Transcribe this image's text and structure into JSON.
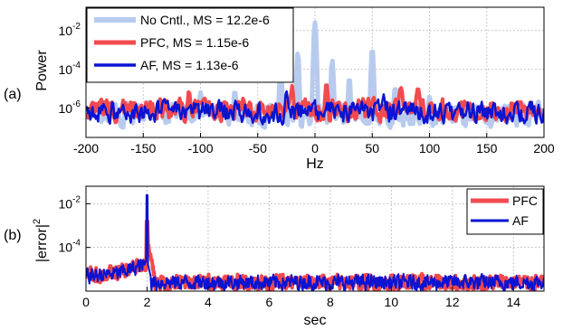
{
  "chart_data": [
    {
      "type": "line",
      "panel_label": "(a)",
      "xlabel": "Hz",
      "ylabel": "Power",
      "xlim": [
        -200,
        200
      ],
      "ylim_log10": [
        -7.5,
        -0.8
      ],
      "y_scale": "log",
      "grid": true,
      "legend_placement": "top-left",
      "x_ticks": [
        "-200",
        "-150",
        "-100",
        "-50",
        "0",
        "50",
        "100",
        "150",
        "200"
      ],
      "y_ticks": [
        {
          "base": "10",
          "exp": "-2",
          "value": -2
        },
        {
          "base": "10",
          "exp": "-4",
          "value": -4
        },
        {
          "base": "10",
          "exp": "-6",
          "value": -6
        }
      ],
      "series": [
        {
          "name": "No Cntl., MS = 12.2e-6",
          "color": "#b8cbef",
          "width": 5
        },
        {
          "name": "PFC, MS = 1.15e-6",
          "color": "#f24a4f",
          "width": 4
        },
        {
          "name": "AF, MS = 1.13e-6",
          "color": "#0a14d2",
          "width": 2.5
        }
      ],
      "peaks_no_control": [
        {
          "x": -30,
          "log10": -3.9
        },
        {
          "x": -15,
          "log10": -3.2
        },
        {
          "x": 0,
          "log10": -1.6
        },
        {
          "x": 15,
          "log10": -3.5
        },
        {
          "x": 30,
          "log10": -4.4
        },
        {
          "x": 50,
          "log10": -3.0
        }
      ]
    },
    {
      "type": "line",
      "panel_label": "(b)",
      "xlabel": "sec",
      "ylabel_base": "|error|",
      "ylabel_sup": "2",
      "xlim": [
        0,
        15
      ],
      "ylim_log10": [
        -6,
        -1.2
      ],
      "y_scale": "log",
      "grid": true,
      "legend_placement": "top-right",
      "x_ticks": [
        "0",
        "2",
        "4",
        "6",
        "8",
        "10",
        "12",
        "14"
      ],
      "y_ticks": [
        {
          "base": "10",
          "exp": "-2",
          "value": -2
        },
        {
          "base": "10",
          "exp": "-4",
          "value": -4
        }
      ],
      "series": [
        {
          "name": "PFC",
          "color": "#f24a4f",
          "width": 4
        },
        {
          "name": "AF",
          "color": "#0a14d2",
          "width": 2
        }
      ],
      "events": [
        {
          "x": 2.0,
          "AF_peak_log10": -1.6,
          "PFC_peak_log10": -3.6
        }
      ]
    }
  ]
}
